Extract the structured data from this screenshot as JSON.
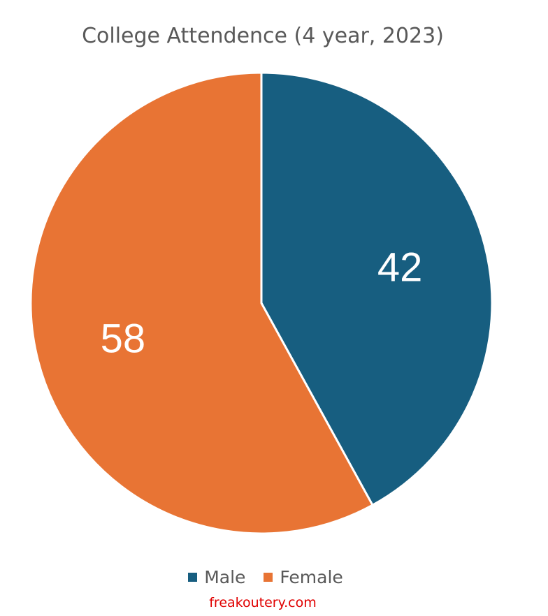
{
  "chart_data": {
    "type": "pie",
    "title": "College Attendence (4 year, 2023)",
    "categories": [
      "Male",
      "Female"
    ],
    "values": [
      42,
      58
    ],
    "data_labels": [
      "42",
      "58"
    ],
    "colors": [
      "#175e80",
      "#e87434"
    ],
    "legend_position": "bottom",
    "start_angle": "12 o'clock, clockwise"
  },
  "watermark": "freakoutery.com"
}
